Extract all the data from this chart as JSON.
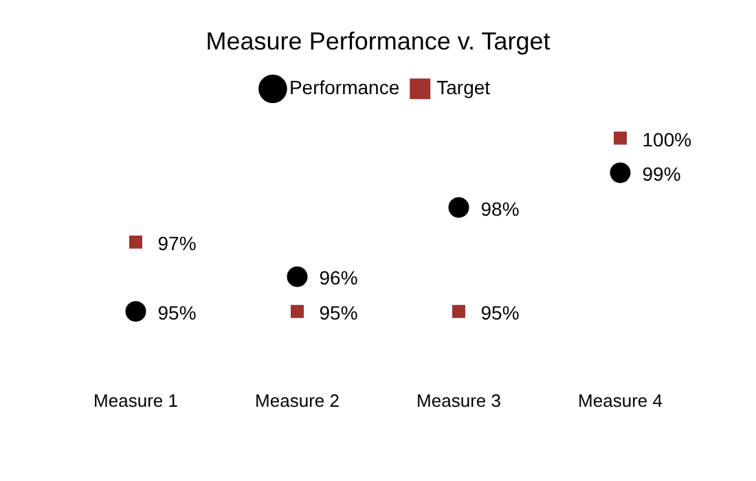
{
  "chart_data": {
    "type": "scatter",
    "title": "Measure Performance v. Target",
    "categories": [
      "Measure 1",
      "Measure 2",
      "Measure 3",
      "Measure 4"
    ],
    "legend": "top",
    "grid": false,
    "series": [
      {
        "name": "Performance",
        "color": "#000000",
        "marker": "circle",
        "values": [
          95,
          96,
          98,
          99
        ],
        "value_labels": [
          "95%",
          "96%",
          "98%",
          "99%"
        ]
      },
      {
        "name": "Target",
        "color": "#a0322d",
        "marker": "square",
        "values": [
          97,
          95,
          95,
          100
        ],
        "value_labels": [
          "97%",
          "95%",
          "95%",
          "100%"
        ]
      }
    ]
  }
}
